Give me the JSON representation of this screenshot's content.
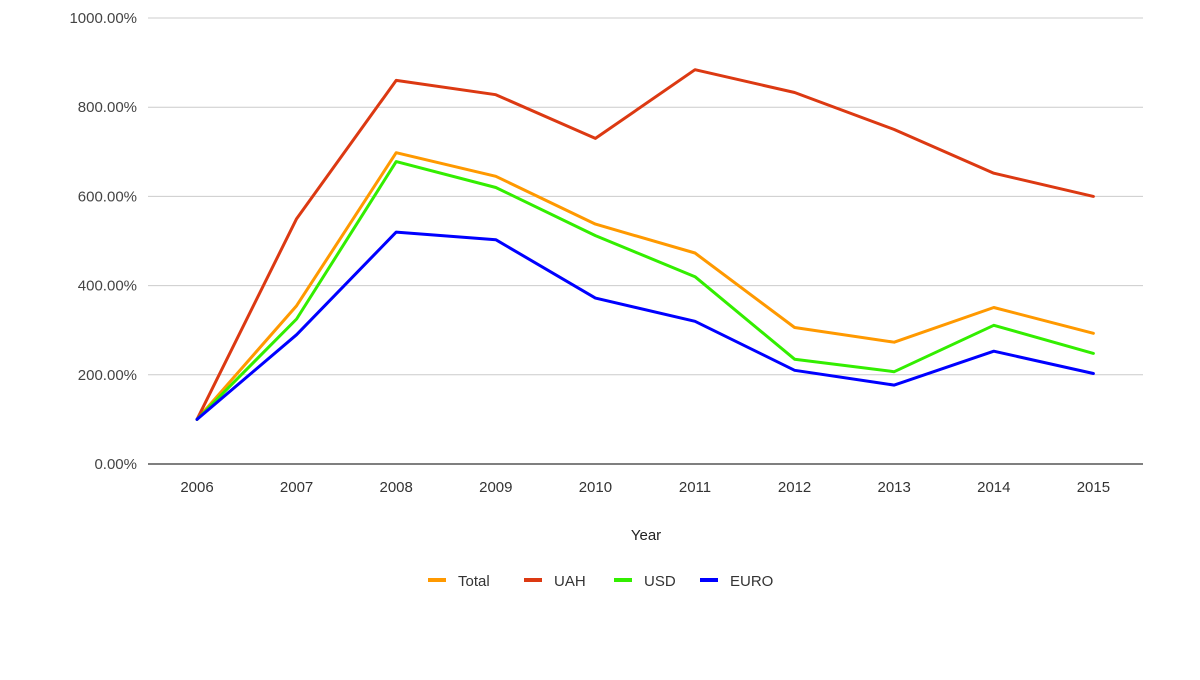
{
  "chart_data": {
    "type": "line",
    "title": "",
    "xlabel": "Year",
    "ylabel": "",
    "x": [
      "2006",
      "2007",
      "2008",
      "2009",
      "2010",
      "2011",
      "2012",
      "2013",
      "2014",
      "2015"
    ],
    "y_tick_labels": [
      "0.00%",
      "200.00%",
      "400.00%",
      "600.00%",
      "800.00%",
      "1000.00%"
    ],
    "y_ticks": [
      0,
      200,
      400,
      600,
      800,
      1000
    ],
    "ylim": [
      0,
      1000
    ],
    "y_unit": "percent",
    "grid": true,
    "legend_position": "bottom",
    "series": [
      {
        "name": "Total",
        "color": "#ff9900",
        "values": [
          100,
          355,
          698,
          645,
          538,
          473,
          306,
          273,
          351,
          293
        ]
      },
      {
        "name": "UAH",
        "color": "#dc3912",
        "values": [
          100,
          550,
          860,
          828,
          730,
          884,
          833,
          750,
          652,
          600
        ]
      },
      {
        "name": "USD",
        "color": "#33ee00",
        "values": [
          100,
          325,
          678,
          620,
          512,
          420,
          235,
          207,
          311,
          248
        ]
      },
      {
        "name": "EURO",
        "color": "#0000ff",
        "values": [
          100,
          290,
          520,
          503,
          372,
          320,
          210,
          177,
          253,
          203
        ]
      }
    ]
  }
}
